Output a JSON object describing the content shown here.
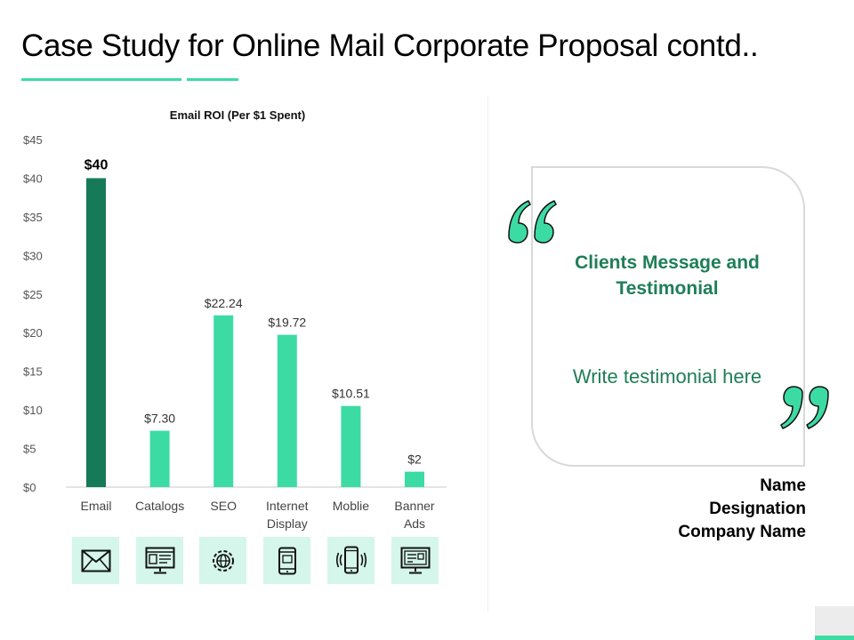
{
  "slide": {
    "title": "Case Study for Online Mail Corporate Proposal contd.."
  },
  "colors": {
    "accent": "#3ddba4",
    "highlight_bar": "#167a58",
    "tile_background": "#d5f6ea",
    "text_green": "#1e7e58"
  },
  "chart_data": {
    "type": "bar",
    "title": "Email ROI (Per $1 Spent)",
    "xlabel": "",
    "ylabel": "",
    "categories": [
      "Email",
      "Catalogs",
      "SEO",
      "Internet Display",
      "Moblie",
      "Banner Ads"
    ],
    "values": [
      40,
      7.3,
      22.24,
      19.72,
      10.51,
      2
    ],
    "value_labels": [
      "$40",
      "$7.30",
      "$22.24",
      "$19.72",
      "$10.51",
      "$2"
    ],
    "highlighted_category": "Email",
    "ylim": [
      0,
      45
    ],
    "yticks": [
      0,
      5,
      10,
      15,
      20,
      25,
      30,
      35,
      40,
      45
    ],
    "ytick_labels": [
      "$0",
      "$5",
      "$10",
      "$15",
      "$20",
      "$25",
      "$30",
      "$35",
      "$40",
      "$45"
    ],
    "grid": false,
    "legend": "none"
  },
  "category_icons": [
    "envelope-icon",
    "catalog-monitor-icon",
    "seo-globe-gear-icon",
    "internet-display-phone-icon",
    "mobile-phone-icon",
    "banner-ad-monitor-icon"
  ],
  "testimonial": {
    "heading": "Clients Message and Testimonial",
    "body": "Write testimonial here",
    "name": "Name",
    "designation": "Designation",
    "company": "Company Name"
  }
}
